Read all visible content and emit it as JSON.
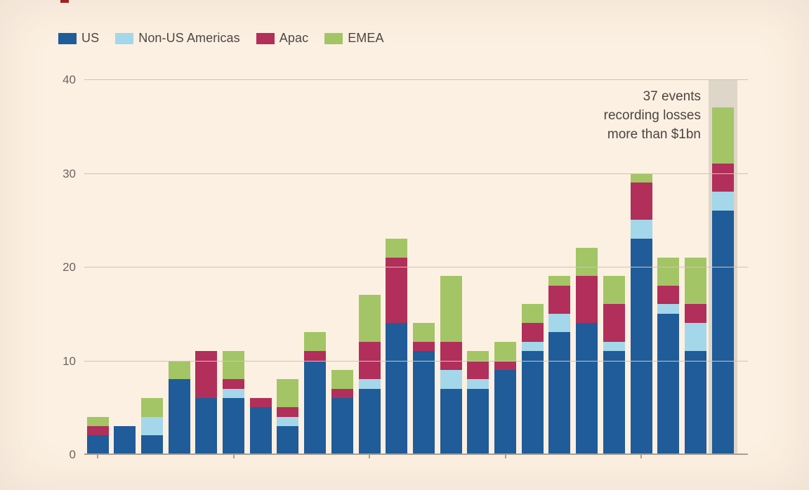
{
  "page": {
    "background": "#fcf0e2",
    "artifact_red_mark_color": "#9f2121"
  },
  "legend": {
    "items": [
      {
        "label": "US",
        "color": "#1f5c99"
      },
      {
        "label": "Non-US Americas",
        "color": "#a4d7ea"
      },
      {
        "label": "Apac",
        "color": "#b12f5a"
      },
      {
        "label": "EMEA",
        "color": "#a3c566"
      }
    ]
  },
  "annotation": {
    "text": "37 events\nrecording losses\nmore than $1bn"
  },
  "colors": {
    "gridline": "#cfc3b6",
    "baseline": "#a89e92",
    "tick": "#a89e92",
    "y_label_text": "#6b6560",
    "legend_text": "#4d4843",
    "annotation_text": "#4b4541",
    "highlight_band": "#ded6c9"
  },
  "chart_data": {
    "type": "bar",
    "stacked": true,
    "title": "",
    "xlabel": "",
    "ylabel": "",
    "ylim": [
      0,
      40
    ],
    "yticks": [
      0,
      10,
      20,
      30,
      40
    ],
    "grid": true,
    "legend_position": "top-left",
    "x_axis_tick_every_n_bars": 5,
    "categories": [
      "",
      "",
      "",
      "",
      "",
      "",
      "",
      "",
      "",
      "",
      "",
      "",
      "",
      "",
      "",
      "",
      "",
      "",
      "",
      "",
      "",
      "",
      "",
      ""
    ],
    "series": [
      {
        "name": "US",
        "color": "#1f5c99",
        "values": [
          2,
          3,
          2,
          8,
          6,
          6,
          5,
          3,
          10,
          6,
          7,
          14,
          11,
          7,
          7,
          9,
          11,
          13,
          14,
          11,
          23,
          15,
          11,
          26
        ]
      },
      {
        "name": "Non-US Americas",
        "color": "#a4d7ea",
        "values": [
          0,
          0,
          2,
          0,
          0,
          1,
          0,
          1,
          0,
          0,
          1,
          0,
          0,
          2,
          1,
          0,
          1,
          2,
          0,
          1,
          2,
          1,
          3,
          2
        ]
      },
      {
        "name": "Apac",
        "color": "#b12f5a",
        "values": [
          1,
          0,
          0,
          0,
          5,
          1,
          1,
          1,
          1,
          1,
          4,
          7,
          1,
          3,
          2,
          1,
          2,
          3,
          5,
          4,
          4,
          2,
          2,
          3
        ]
      },
      {
        "name": "EMEA",
        "color": "#a3c566",
        "values": [
          1,
          0,
          2,
          2,
          0,
          3,
          0,
          3,
          2,
          2,
          5,
          2,
          2,
          7,
          1,
          2,
          2,
          1,
          3,
          3,
          1,
          3,
          5,
          6
        ]
      }
    ],
    "totals": [
      4,
      3,
      6,
      10,
      11,
      11,
      6,
      8,
      13,
      9,
      17,
      23,
      14,
      19,
      11,
      12,
      16,
      19,
      22,
      19,
      30,
      21,
      21,
      37
    ],
    "highlight_last_bar": {
      "band_color": "#ded6c9",
      "band_full_height": true
    },
    "annotation": "37 events recording losses more than $1bn"
  }
}
